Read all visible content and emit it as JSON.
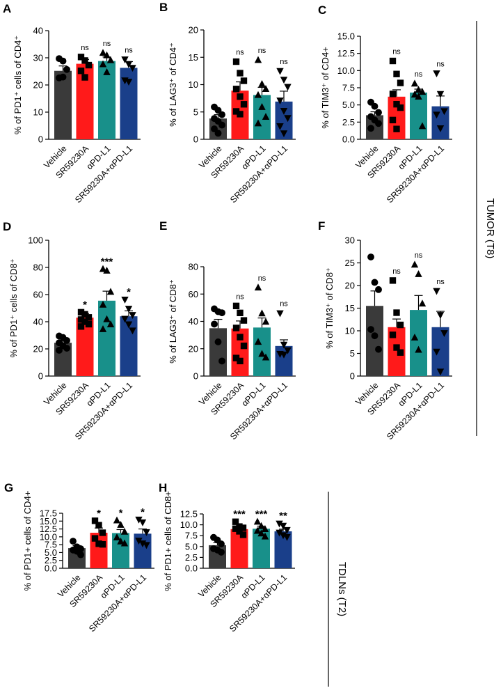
{
  "categories": [
    "Vehicle",
    "SR59230A",
    "αPD-L1",
    "SR59230A+αPD-L1"
  ],
  "colors": [
    "#3a3a3a",
    "#ff1a1a",
    "#18908a",
    "#1a3f8a"
  ],
  "markers": [
    "circle",
    "square",
    "triangle",
    "triangle-down"
  ],
  "groups": [
    {
      "label": "TUMOR (T8)"
    },
    {
      "label": "TDLNs (T2)"
    }
  ],
  "chart_data": [
    {
      "panel": "A",
      "type": "bar",
      "ylabel": "% of PD1⁺ cells of CD4⁺",
      "ylim": [
        0,
        40
      ],
      "ticks": [
        0,
        10,
        20,
        30,
        40
      ],
      "values": [
        25.2,
        27.8,
        28.8,
        26.3
      ],
      "errors": [
        1.8,
        1.6,
        1.5,
        2.3
      ],
      "significance": [
        "",
        "ns",
        "ns",
        "ns"
      ],
      "points": [
        [
          29.7,
          28.8,
          25.7,
          22.6,
          22.9
        ],
        [
          30.3,
          29.0,
          27.3,
          25.2,
          22.8
        ],
        [
          31.8,
          30.9,
          29.1,
          27.6,
          24.7
        ],
        [
          29.4,
          27.7,
          26.3,
          21.7,
          21.2
        ]
      ]
    },
    {
      "panel": "B",
      "type": "bar",
      "ylabel": "% of LAG3⁺ of CD4⁺",
      "ylim": [
        0,
        20
      ],
      "ticks": [
        0,
        5,
        10,
        15,
        20
      ],
      "values": [
        3.8,
        8.9,
        8.1,
        6.9
      ],
      "errors": [
        0.7,
        1.6,
        1.4,
        1.9
      ],
      "significance": [
        "",
        "ns",
        "ns",
        "ns"
      ],
      "points": [
        [
          5.9,
          5.3,
          4.5,
          3.8,
          3.3,
          2.6,
          1.9,
          1.1
        ],
        [
          14.2,
          12.1,
          10.7,
          9.2,
          7.8,
          6.4,
          5.1,
          4.6
        ],
        [
          14.5,
          10.1,
          9.2,
          8.1,
          5.9,
          4.1,
          2.9
        ],
        [
          12.5,
          10.9,
          9.6,
          7.1,
          5.2,
          3.9,
          2.4,
          1.1
        ]
      ]
    },
    {
      "panel": "C",
      "type": "bar",
      "ylabel": "% of TIM3⁺ of CD4+",
      "ylim": [
        0,
        15
      ],
      "ticks": [
        0.0,
        2.5,
        5.0,
        7.5,
        10.0,
        12.5,
        15.0
      ],
      "values": [
        3.5,
        6.2,
        6.8,
        4.8
      ],
      "errors": [
        0.5,
        1.0,
        0.5,
        1.5
      ],
      "significance": [
        "",
        "ns",
        "ns",
        "ns"
      ],
      "points": [
        [
          5.4,
          4.8,
          3.9,
          3.3,
          2.8,
          2.3,
          1.6
        ],
        [
          11.4,
          9.5,
          8.2,
          6.6,
          5.1,
          4.6,
          2.8,
          1.5
        ],
        [
          8.1,
          7.2,
          6.9,
          6.5,
          6.2,
          1.9
        ],
        [
          9.6,
          6.6,
          4.1,
          3.6,
          1.6
        ]
      ]
    },
    {
      "panel": "D",
      "type": "bar",
      "ylabel": "% of PD1⁺ cells of CD8⁺",
      "ylim": [
        0,
        100
      ],
      "ticks": [
        0,
        20,
        40,
        60,
        80,
        100
      ],
      "values": [
        24.5,
        43.0,
        55.5,
        44.0
      ],
      "errors": [
        1.5,
        3.0,
        7.0,
        4.0
      ],
      "significance": [
        "",
        "*",
        "***",
        "*"
      ],
      "points": [
        [
          29.5,
          28.4,
          26.2,
          24.5,
          22.3,
          20.5,
          19.0
        ],
        [
          47.0,
          45.5,
          43.2,
          41.6,
          40.0,
          38.2,
          36.5
        ],
        [
          78.8,
          77.6,
          62.0,
          52.5,
          41.8,
          38.0,
          34.5
        ],
        [
          56.3,
          49.6,
          45.0,
          42.2,
          38.1,
          33.6
        ]
      ]
    },
    {
      "panel": "E",
      "type": "bar",
      "ylabel": "% of LAG3⁺ of CD8⁺",
      "ylim": [
        0,
        80
      ],
      "ticks": [
        0,
        20,
        40,
        60,
        80
      ],
      "values": [
        35.0,
        34.8,
        35.5,
        22.0
      ],
      "errors": [
        6.5,
        5.5,
        7.0,
        4.5
      ],
      "significance": [
        "",
        "ns",
        "ns",
        "ns"
      ],
      "points": [
        [
          49.2,
          47.1,
          46.3,
          38.0,
          25.0,
          11.0
        ],
        [
          51.3,
          46.2,
          40.7,
          35.2,
          28.5,
          22.1,
          13.2,
          11.0
        ],
        [
          64.7,
          45.8,
          39.7,
          25.0,
          16.2,
          13.6
        ],
        [
          46.0,
          23.0,
          18.9,
          16.2,
          15.8
        ]
      ]
    },
    {
      "panel": "F",
      "type": "bar",
      "ylabel": "% of TIM3⁺ of CD8⁺",
      "ylim": [
        0,
        30
      ],
      "ticks": [
        0,
        5,
        10,
        15,
        20,
        25,
        30
      ],
      "values": [
        15.5,
        10.8,
        14.6,
        10.8
      ],
      "errors": [
        3.3,
        1.8,
        3.2,
        3.5
      ],
      "significance": [
        "",
        "ns",
        "ns",
        "ns"
      ],
      "points": [
        [
          26.3,
          20.7,
          19.1,
          10.3,
          8.9,
          5.9
        ],
        [
          21.1,
          14.0,
          11.3,
          9.1,
          6.3,
          5.2
        ],
        [
          24.6,
          22.5,
          16.0,
          8.5,
          5.8
        ],
        [
          18.8,
          13.5,
          9.5,
          5.4,
          1.0
        ]
      ]
    },
    {
      "panel": "G",
      "type": "bar",
      "ylabel": "% of PD1+ cells of CD4+",
      "ylim": [
        0,
        17.5
      ],
      "ticks": [
        0.0,
        2.5,
        5.0,
        7.5,
        10.0,
        12.5,
        15.0,
        17.5
      ],
      "values": [
        6.4,
        11.3,
        11.2,
        11.0
      ],
      "errors": [
        0.8,
        1.5,
        1.1,
        1.5
      ],
      "significance": [
        "",
        "*",
        "*",
        "*"
      ],
      "points": [
        [
          8.6,
          6.8,
          6.2,
          5.8,
          5.4,
          4.3
        ],
        [
          15.1,
          13.7,
          11.3,
          9.5,
          7.8,
          7.6
        ],
        [
          15.2,
          13.8,
          11.6,
          9.8,
          8.5,
          7.9
        ],
        [
          15.5,
          14.6,
          11.5,
          8.8,
          7.9,
          7.4
        ]
      ]
    },
    {
      "panel": "H",
      "type": "bar",
      "ylabel": "% of PD1+ cells of CD8+",
      "ylim": [
        0,
        12.5
      ],
      "ticks": [
        0.0,
        2.5,
        5.0,
        7.5,
        10.0,
        12.5
      ],
      "values": [
        5.3,
        9.0,
        9.1,
        8.5
      ],
      "errors": [
        0.6,
        0.6,
        0.6,
        0.5
      ],
      "significance": [
        "",
        "***",
        "***",
        "**"
      ],
      "points": [
        [
          7.1,
          6.5,
          5.6,
          4.5,
          4.2,
          3.7
        ],
        [
          10.7,
          9.6,
          9.3,
          9.1,
          8.5,
          7.7
        ],
        [
          10.7,
          9.7,
          9.0,
          8.6,
          8.0,
          7.3
        ],
        [
          10.3,
          9.8,
          8.8,
          8.2,
          7.6,
          7.2
        ]
      ]
    }
  ]
}
